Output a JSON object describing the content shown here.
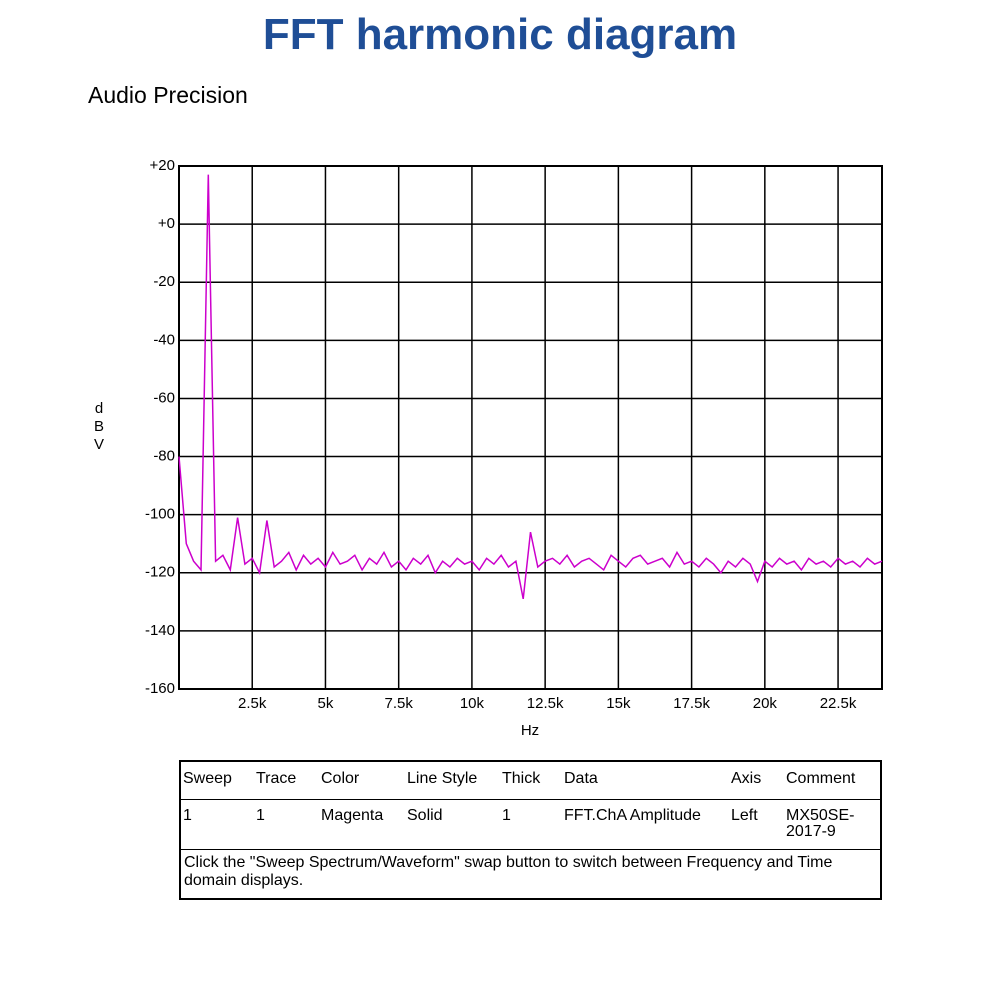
{
  "title": "FFT harmonic diagram",
  "chart_data": {
    "type": "line",
    "subtitle": "Audio Precision",
    "x_label": "Hz",
    "y_label": "dBV",
    "xlim": [
      0,
      24000
    ],
    "ylim": [
      -160,
      20
    ],
    "grid": true,
    "xticks": [
      {
        "value": 2500,
        "label": "2.5k"
      },
      {
        "value": 5000,
        "label": "5k"
      },
      {
        "value": 7500,
        "label": "7.5k"
      },
      {
        "value": 10000,
        "label": "10k"
      },
      {
        "value": 12500,
        "label": "12.5k"
      },
      {
        "value": 15000,
        "label": "15k"
      },
      {
        "value": 17500,
        "label": "17.5k"
      },
      {
        "value": 20000,
        "label": "20k"
      },
      {
        "value": 22500,
        "label": "22.5k"
      }
    ],
    "yticks": [
      {
        "value": 20,
        "label": "+20"
      },
      {
        "value": 0,
        "label": "+0"
      },
      -20,
      -40,
      -60,
      -80,
      -100,
      -120,
      -140,
      -160
    ],
    "x": [
      0,
      250,
      500,
      750,
      1000,
      1250,
      1500,
      1750,
      2000,
      2250,
      2500,
      2750,
      3000,
      3250,
      3500,
      3750,
      4000,
      4250,
      4500,
      4750,
      5000,
      5250,
      5500,
      5750,
      6000,
      6250,
      6500,
      6750,
      7000,
      7250,
      7500,
      7750,
      8000,
      8250,
      8500,
      8750,
      9000,
      9250,
      9500,
      9750,
      10000,
      10250,
      10500,
      10750,
      11000,
      11250,
      11500,
      11750,
      12000,
      12250,
      12500,
      12750,
      13000,
      13250,
      13500,
      13750,
      14000,
      14250,
      14500,
      14750,
      15000,
      15250,
      15500,
      15750,
      16000,
      16250,
      16500,
      16750,
      17000,
      17250,
      17500,
      17750,
      18000,
      18250,
      18500,
      18750,
      19000,
      19250,
      19500,
      19750,
      20000,
      20250,
      20500,
      20750,
      21000,
      21250,
      21500,
      21750,
      22000,
      22250,
      22500,
      22750,
      23000,
      23250,
      23500,
      23750,
      24000
    ],
    "series": [
      {
        "color": "#cc00cc",
        "values": [
          -80,
          -110,
          -116,
          -119,
          17,
          -116,
          -114,
          -119,
          -101,
          -117,
          -115,
          -120,
          -102,
          -118,
          -116,
          -113,
          -119,
          -114,
          -117,
          -115,
          -118,
          -113,
          -117,
          -116,
          -114,
          -119,
          -115,
          -117,
          -113,
          -118,
          -116,
          -119,
          -115,
          -117,
          -114,
          -120,
          -116,
          -118,
          -115,
          -117,
          -116,
          -119,
          -115,
          -117,
          -114,
          -118,
          -116,
          -129,
          -106,
          -118,
          -116,
          -115,
          -117,
          -114,
          -118,
          -116,
          -115,
          -117,
          -119,
          -114,
          -116,
          -118,
          -115,
          -114,
          -117,
          -116,
          -115,
          -118,
          -113,
          -117,
          -116,
          -118,
          -115,
          -117,
          -120,
          -116,
          -118,
          -115,
          -117,
          -123,
          -116,
          -118,
          -115,
          -117,
          -116,
          -119,
          -115,
          -117,
          -116,
          -118,
          -115,
          -117,
          -116,
          -118,
          -115,
          -117,
          -116
        ]
      }
    ]
  },
  "legend_table": {
    "headers": [
      "Sweep",
      "Trace",
      "Color",
      "Line Style",
      "Thick",
      "Data",
      "Axis",
      "Comment"
    ],
    "rows": [
      [
        "1",
        "1",
        "Magenta",
        "Solid",
        "1",
        "FFT.ChA Amplitude",
        "Left",
        "MX50SE-2017-9"
      ]
    ],
    "note": "Click the \"Sweep Spectrum/Waveform\" swap button to switch between Frequency and Time domain displays."
  }
}
